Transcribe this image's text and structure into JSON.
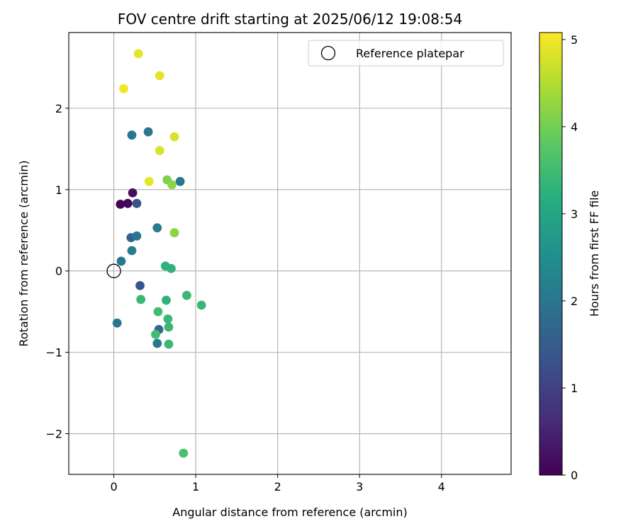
{
  "chart_data": {
    "type": "scatter",
    "title": "FOV centre drift starting at 2025/06/12 19:08:54",
    "xlabel": "Angular distance from reference (arcmin)",
    "ylabel": "Rotation from reference (arcmin)",
    "xlim": [
      -0.55,
      4.85
    ],
    "ylim": [
      -2.5,
      2.93
    ],
    "xticks": [
      0,
      1,
      2,
      3,
      4
    ],
    "xtick_labels": [
      "0",
      "1",
      "2",
      "3",
      "4"
    ],
    "yticks": [
      -2,
      -1,
      0,
      1,
      2
    ],
    "ytick_labels": [
      "−2",
      "−1",
      "0",
      "1",
      "2"
    ],
    "grid": true,
    "legend": {
      "position": "top-right",
      "entries": [
        "Reference platepar"
      ]
    },
    "reference_point": {
      "x": 0,
      "y": 0,
      "label": "Reference platepar"
    },
    "colorbar": {
      "label": "Hours from first FF file",
      "range": [
        0,
        5.08
      ],
      "ticks": [
        0,
        1,
        2,
        3,
        4,
        5
      ],
      "tick_labels": [
        "0",
        "1",
        "2",
        "3",
        "4",
        "5"
      ],
      "colormap": "viridis"
    },
    "points": [
      {
        "x": 0.08,
        "y": 0.82,
        "c": 0.05
      },
      {
        "x": 0.17,
        "y": 0.83,
        "c": 0.1
      },
      {
        "x": 0.23,
        "y": 0.96,
        "c": 0.2
      },
      {
        "x": 0.28,
        "y": 0.83,
        "c": 1.3
      },
      {
        "x": 0.21,
        "y": 0.41,
        "c": 1.6
      },
      {
        "x": 0.28,
        "y": 0.43,
        "c": 2.0
      },
      {
        "x": 0.22,
        "y": 0.25,
        "c": 2.1
      },
      {
        "x": 0.09,
        "y": 0.12,
        "c": 2.0
      },
      {
        "x": 0.32,
        "y": -0.18,
        "c": 1.4
      },
      {
        "x": 0.22,
        "y": 1.67,
        "c": 2.0
      },
      {
        "x": 0.42,
        "y": 1.71,
        "c": 2.0
      },
      {
        "x": 0.81,
        "y": 1.1,
        "c": 2.0
      },
      {
        "x": 0.53,
        "y": 0.53,
        "c": 2.1
      },
      {
        "x": 0.04,
        "y": -0.64,
        "c": 2.0
      },
      {
        "x": 0.55,
        "y": -0.72,
        "c": 1.7
      },
      {
        "x": 0.53,
        "y": -0.89,
        "c": 2.0
      },
      {
        "x": 0.63,
        "y": 0.06,
        "c": 3.3
      },
      {
        "x": 0.7,
        "y": 0.03,
        "c": 3.3
      },
      {
        "x": 0.33,
        "y": -0.35,
        "c": 3.4
      },
      {
        "x": 0.64,
        "y": -0.36,
        "c": 3.3
      },
      {
        "x": 0.89,
        "y": -0.3,
        "c": 3.4
      },
      {
        "x": 1.07,
        "y": -0.42,
        "c": 3.4
      },
      {
        "x": 0.54,
        "y": -0.5,
        "c": 3.5
      },
      {
        "x": 0.66,
        "y": -0.59,
        "c": 3.4
      },
      {
        "x": 0.67,
        "y": -0.69,
        "c": 3.4
      },
      {
        "x": 0.51,
        "y": -0.78,
        "c": 3.5
      },
      {
        "x": 0.67,
        "y": -0.9,
        "c": 3.4
      },
      {
        "x": 0.85,
        "y": -2.24,
        "c": 3.6
      },
      {
        "x": 0.74,
        "y": 0.47,
        "c": 4.2
      },
      {
        "x": 0.65,
        "y": 1.12,
        "c": 4.1
      },
      {
        "x": 0.71,
        "y": 1.06,
        "c": 4.2
      },
      {
        "x": 0.3,
        "y": 2.67,
        "c": 4.9
      },
      {
        "x": 0.56,
        "y": 2.4,
        "c": 4.9
      },
      {
        "x": 0.12,
        "y": 2.24,
        "c": 5.0
      },
      {
        "x": 0.74,
        "y": 1.65,
        "c": 4.8
      },
      {
        "x": 0.56,
        "y": 1.48,
        "c": 4.8
      },
      {
        "x": 0.43,
        "y": 1.1,
        "c": 4.9
      }
    ]
  }
}
